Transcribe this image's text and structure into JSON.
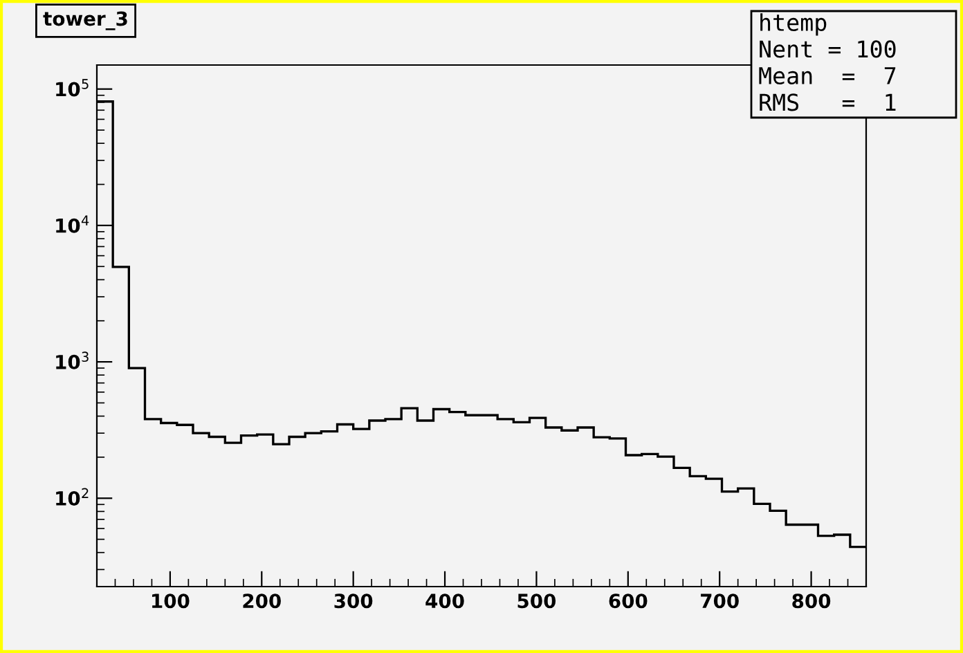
{
  "chart_data": {
    "type": "histogram",
    "title": "tower_3",
    "bins": [
      20,
      37.5,
      55,
      72.5,
      90,
      107.5,
      125,
      142.5,
      160,
      177.5,
      195,
      212.5,
      230,
      247.5,
      265,
      282.5,
      300,
      317.5,
      335,
      352.5,
      370,
      387.5,
      405,
      422.5,
      440,
      457.5,
      475,
      492.5,
      510,
      527.5,
      545,
      562.5,
      580,
      597.5,
      615,
      632.5,
      650,
      667.5,
      685,
      702.5,
      720,
      737.5,
      755,
      772.5,
      790,
      807.5,
      825,
      842.5,
      860
    ],
    "values": [
      81000,
      4960,
      900,
      380,
      356,
      345,
      300,
      282,
      255,
      288,
      293,
      249,
      282,
      300,
      309,
      348,
      322,
      371,
      380,
      457,
      371,
      450,
      429,
      406,
      406,
      380,
      361,
      388,
      330,
      314,
      330,
      280,
      274,
      207,
      211,
      202,
      167,
      145,
      139,
      112,
      118,
      91,
      81,
      64,
      64,
      53,
      54,
      44
    ],
    "color": "#000000",
    "log": true,
    "grid": false,
    "xlim": [
      20,
      860
    ],
    "xticks": [
      100,
      200,
      300,
      400,
      500,
      600,
      700,
      800
    ],
    "ylim": [
      22.5,
      150000
    ],
    "yticks": [
      {
        "value": 100,
        "label": "10$^{2}$"
      },
      {
        "value": 1000,
        "label": "10$^{3}$"
      },
      {
        "value": 10000,
        "label": "10$^{4}$"
      },
      {
        "value": 100000,
        "label": "10$^{5}$"
      }
    ],
    "annotations": [
      "htemp",
      "Nent = 100",
      "Mean  =  7",
      "RMS   =  1"
    ]
  }
}
